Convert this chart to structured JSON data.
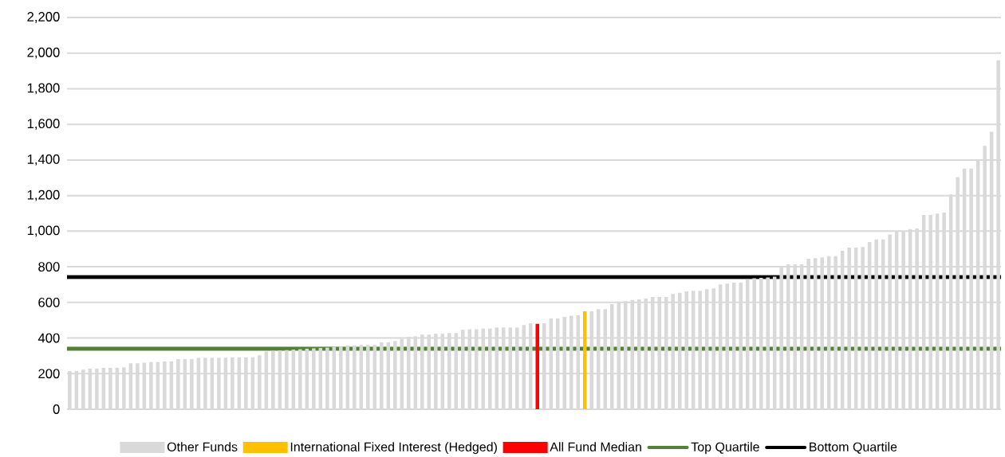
{
  "chart_data": {
    "type": "bar",
    "categories": [
      null,
      null,
      null,
      null,
      null,
      null,
      null,
      null,
      null,
      null,
      null,
      null,
      null,
      null,
      null,
      null,
      null,
      null,
      null,
      null,
      null,
      null,
      null,
      null,
      null,
      null,
      null,
      null,
      null,
      null,
      null,
      null,
      null,
      null,
      null,
      null,
      null,
      null,
      null,
      null,
      null,
      null,
      null,
      null,
      null,
      null,
      null,
      null,
      null,
      null,
      null,
      null,
      null,
      null,
      null,
      null,
      null,
      null,
      null,
      null,
      null,
      null,
      null,
      null,
      null,
      null,
      null,
      null,
      null,
      null,
      null,
      null,
      null,
      null,
      null,
      null,
      null,
      null,
      null,
      null,
      null,
      null,
      null,
      null,
      null,
      null,
      null,
      null,
      null,
      null,
      null,
      null,
      null,
      null,
      null,
      null,
      null,
      null,
      null,
      null,
      null,
      null,
      null,
      null,
      null,
      null,
      null,
      null,
      null,
      null,
      null,
      null,
      null,
      null,
      null,
      null,
      null,
      null,
      null,
      null,
      null,
      null,
      null,
      null,
      null,
      null,
      null,
      null,
      null,
      null,
      null,
      null,
      null,
      null,
      null,
      null,
      null,
      null
    ],
    "series": [
      {
        "name": "Other Funds",
        "color": "#d9d9d9",
        "values": [
          215,
          215,
          222,
          228,
          228,
          232,
          232,
          232,
          235,
          258,
          258,
          262,
          265,
          265,
          268,
          268,
          282,
          282,
          282,
          288,
          289,
          289,
          289,
          289,
          291,
          291,
          291,
          292,
          303,
          325,
          328,
          330,
          332,
          335,
          337,
          340,
          342,
          344,
          346,
          350,
          352,
          358,
          358,
          361,
          361,
          361,
          376,
          376,
          383,
          395,
          406,
          410,
          419,
          419,
          424,
          424,
          428,
          428,
          446,
          449,
          449,
          453,
          453,
          459,
          459,
          459,
          459,
          473,
          483,
          null,
          483,
          510,
          510,
          519,
          525,
          528,
          null,
          550,
          562,
          562,
          590,
          599,
          607,
          614,
          617,
          622,
          631,
          631,
          631,
          647,
          654,
          662,
          665,
          665,
          674,
          678,
          701,
          705,
          711,
          711,
          730,
          735,
          738,
          740,
          745,
          796,
          814,
          814,
          814,
          845,
          848,
          853,
          860,
          860,
          890,
          908,
          908,
          911,
          939,
          953,
          953,
          982,
          997,
          997,
          1012,
          1015,
          1091,
          1091,
          1099,
          1105,
          1206,
          1303,
          1351,
          1351,
          1404,
          1479,
          1558,
          1960
        ]
      },
      {
        "name": "International Fixed Interest (Hedged)",
        "color": "#ffc000",
        "values": [
          null,
          null,
          null,
          null,
          null,
          null,
          null,
          null,
          null,
          null,
          null,
          null,
          null,
          null,
          null,
          null,
          null,
          null,
          null,
          null,
          null,
          null,
          null,
          null,
          null,
          null,
          null,
          null,
          null,
          null,
          null,
          null,
          null,
          null,
          null,
          null,
          null,
          null,
          null,
          null,
          null,
          null,
          null,
          null,
          null,
          null,
          null,
          null,
          null,
          null,
          null,
          null,
          null,
          null,
          null,
          null,
          null,
          null,
          null,
          null,
          null,
          null,
          null,
          null,
          null,
          null,
          null,
          null,
          null,
          null,
          null,
          null,
          null,
          null,
          null,
          null,
          550,
          null,
          null,
          null,
          null,
          null,
          null,
          null,
          null,
          null,
          null,
          null,
          null,
          null,
          null,
          null,
          null,
          null,
          null,
          null,
          null,
          null,
          null,
          null,
          null,
          null,
          null,
          null,
          null,
          null,
          null,
          null,
          null,
          null,
          null,
          null,
          null,
          null,
          null,
          null,
          null,
          null,
          null,
          null,
          null,
          null,
          null,
          null,
          null,
          null,
          null,
          null,
          null,
          null,
          null,
          null,
          null,
          null,
          null,
          null,
          null,
          null
        ]
      },
      {
        "name": "All Fund Median",
        "color": "#ff0000",
        "values": [
          null,
          null,
          null,
          null,
          null,
          null,
          null,
          null,
          null,
          null,
          null,
          null,
          null,
          null,
          null,
          null,
          null,
          null,
          null,
          null,
          null,
          null,
          null,
          null,
          null,
          null,
          null,
          null,
          null,
          null,
          null,
          null,
          null,
          null,
          null,
          null,
          null,
          null,
          null,
          null,
          null,
          null,
          null,
          null,
          null,
          null,
          null,
          null,
          null,
          null,
          null,
          null,
          null,
          null,
          null,
          null,
          null,
          null,
          null,
          null,
          null,
          null,
          null,
          null,
          null,
          null,
          null,
          null,
          null,
          480,
          null,
          null,
          null,
          null,
          null,
          null,
          null,
          null,
          null,
          null,
          null,
          null,
          null,
          null,
          null,
          null,
          null,
          null,
          null,
          null,
          null,
          null,
          null,
          null,
          null,
          null,
          null,
          null,
          null,
          null,
          null,
          null,
          null,
          null,
          null,
          null,
          null,
          null,
          null,
          null,
          null,
          null,
          null,
          null,
          null,
          null,
          null,
          null,
          null,
          null,
          null,
          null,
          null,
          null,
          null,
          null,
          null,
          null,
          null,
          null,
          null,
          null,
          null,
          null,
          null,
          null,
          null,
          null
        ]
      }
    ],
    "ref_lines": [
      {
        "axis": "y",
        "value": 340,
        "label": "Top Quartile",
        "color": "#548235"
      },
      {
        "axis": "y",
        "value": 742,
        "label": "Bottom Quartile",
        "color": "#000000"
      }
    ],
    "ylim": [
      0,
      2200
    ],
    "yticks": [
      0,
      200,
      400,
      600,
      800,
      {
        "value": 1000,
        "label": "1,000"
      },
      {
        "value": 1200,
        "label": "1,200"
      },
      {
        "value": 1400,
        "label": "1,400"
      },
      {
        "value": 1600,
        "label": "1,600"
      },
      {
        "value": 1800,
        "label": "1,800"
      },
      {
        "value": 2000,
        "label": "2,000"
      },
      {
        "value": 2200,
        "label": "2,200"
      }
    ],
    "grid": "y",
    "legend": "bottom",
    "tick_labels": "y"
  }
}
